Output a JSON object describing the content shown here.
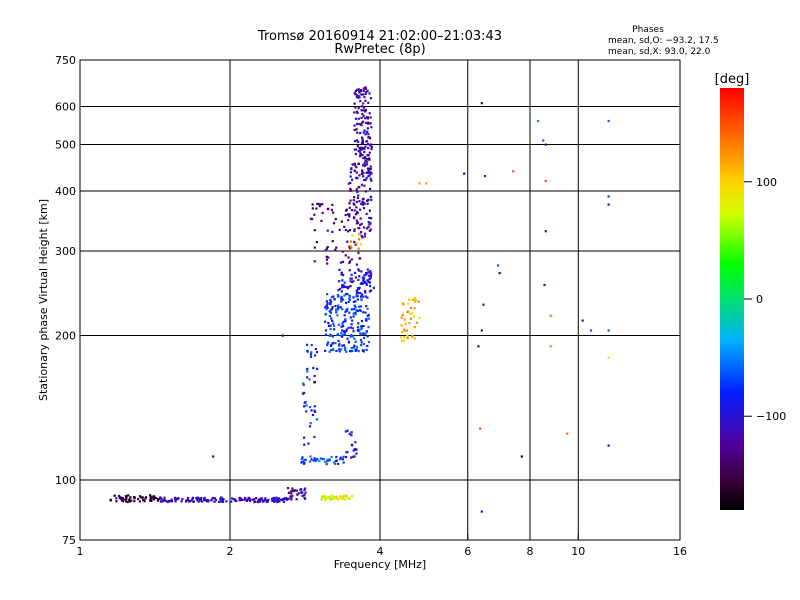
{
  "chart_data": {
    "type": "scatter",
    "title": "Tromsø 20160914 21:02:00–21:03:43",
    "subtitle": "RwPretec (8p)",
    "xlabel": "Frequency [MHz]",
    "ylabel": "Stationary phase Virtual Height [km]",
    "xscale": "log",
    "yscale": "log",
    "xlim": [
      1,
      16
    ],
    "ylim": [
      75,
      750
    ],
    "xticks": [
      "1",
      "2",
      "4",
      "6",
      "8",
      "10",
      "16"
    ],
    "yticks": [
      "75",
      "100",
      "200",
      "300",
      "400",
      "500",
      "600",
      "750"
    ],
    "x_gridlines": [
      2,
      4,
      6,
      8,
      10
    ],
    "y_gridlines": [
      100,
      200,
      300,
      400,
      500,
      600
    ],
    "phase_header": "Phases",
    "stats_line1": "mean, sd,O: −93.2, 17.5",
    "stats_line2": "mean, sd,X:  93.0, 22.0",
    "colorbar": {
      "label": "[deg]",
      "range": [
        -180,
        180
      ],
      "ticks": [
        "100",
        "0",
        "−100"
      ],
      "tick_values": [
        100,
        0,
        -100
      ]
    },
    "series": [
      {
        "kind": "cluster",
        "x": [
          1.15,
          1.45
        ],
        "y": [
          90,
          93
        ],
        "phase": -160,
        "n": 60
      },
      {
        "kind": "cluster",
        "x": [
          1.45,
          2.6
        ],
        "y": [
          90,
          92
        ],
        "phase": -110,
        "n": 160
      },
      {
        "kind": "cluster",
        "x": [
          2.6,
          2.85
        ],
        "y": [
          91,
          97
        ],
        "phase": -120,
        "n": 30
      },
      {
        "kind": "cluster",
        "x": [
          3.05,
          3.55
        ],
        "y": [
          91,
          93
        ],
        "phase": 80,
        "n": 40
      },
      {
        "kind": "cluster",
        "x": [
          2.75,
          3.4
        ],
        "y": [
          108,
          112
        ],
        "phase": -70,
        "n": 40
      },
      {
        "kind": "cluster",
        "x": [
          3.4,
          3.6
        ],
        "y": [
          107,
          128
        ],
        "phase": -90,
        "n": 20
      },
      {
        "kind": "cluster",
        "x": [
          2.8,
          3.0
        ],
        "y": [
          115,
          195
        ],
        "phase": -80,
        "n": 40
      },
      {
        "kind": "cluster",
        "x": [
          3.1,
          3.8
        ],
        "y": [
          185,
          245
        ],
        "phase": -75,
        "n": 220
      },
      {
        "kind": "cluster",
        "x": [
          3.3,
          3.9
        ],
        "y": [
          245,
          275
        ],
        "phase": -95,
        "n": 80
      },
      {
        "kind": "cluster",
        "x": [
          4.4,
          4.8
        ],
        "y": [
          195,
          240
        ],
        "phase": 110,
        "n": 40
      },
      {
        "kind": "cluster",
        "x": [
          2.9,
          3.65
        ],
        "y": [
          280,
          380
        ],
        "phase": -135,
        "n": 70
      },
      {
        "kind": "cluster",
        "x": [
          3.45,
          3.85
        ],
        "y": [
          320,
          460
        ],
        "phase": -115,
        "n": 120
      },
      {
        "kind": "cluster",
        "x": [
          3.55,
          3.85
        ],
        "y": [
          460,
          660
        ],
        "phase": -118,
        "n": 130
      },
      {
        "kind": "cluster",
        "x": [
          3.45,
          3.75
        ],
        "y": [
          300,
          330
        ],
        "phase": 120,
        "n": 10
      },
      {
        "kind": "points",
        "x": [
          6.4,
          6.5,
          6.9,
          6.3,
          6.45,
          6.4,
          6.35,
          6.4
        ],
        "y": [
          610,
          430,
          280,
          190,
          232,
          205,
          128,
          86
        ],
        "phase": [
          -140,
          -110,
          -60,
          -130,
          -110,
          -120,
          150,
          -90
        ]
      },
      {
        "kind": "points",
        "x": [
          8.3,
          8.5,
          8.6,
          8.6,
          8.6,
          8.55,
          8.8,
          8.8,
          9.5,
          10.2,
          10.6,
          11.5,
          11.5,
          11.5,
          11.5,
          11.5,
          11.5
        ],
        "y": [
          560,
          510,
          500,
          420,
          330,
          255,
          220,
          190,
          125,
          215,
          205,
          560,
          390,
          205,
          180,
          118,
          375
        ],
        "phase": [
          -50,
          -60,
          -120,
          150,
          -110,
          -130,
          140,
          130,
          140,
          -90,
          -60,
          -60,
          -70,
          -60,
          90,
          -100,
          -110
        ]
      },
      {
        "kind": "points",
        "x": [
          1.85,
          4.95,
          5.9,
          7.4,
          2.95,
          2.55,
          4.8,
          6.95,
          7.7
        ],
        "y": [
          112,
          415,
          435,
          440,
          160,
          200,
          415,
          270,
          112
        ],
        "phase": [
          -150,
          120,
          -140,
          150,
          -150,
          -130,
          120,
          -140,
          -160
        ]
      }
    ]
  }
}
